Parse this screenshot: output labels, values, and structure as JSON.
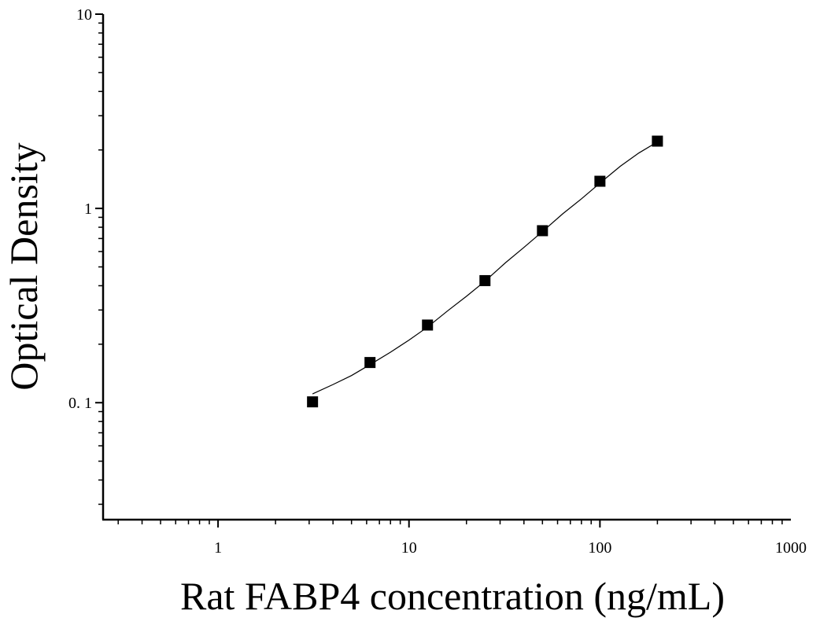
{
  "chart_data": {
    "type": "scatter",
    "title": "",
    "xlabel": "Rat FABP4 concentration (ng/mL)",
    "ylabel": "Optical Density",
    "x_scale": "log",
    "y_scale": "log",
    "xlim": [
      0.25,
      1000
    ],
    "ylim": [
      0.025,
      10
    ],
    "x_ticks": [
      {
        "value": 1,
        "label": "1"
      },
      {
        "value": 10,
        "label": "10"
      },
      {
        "value": 100,
        "label": "100"
      },
      {
        "value": 1000,
        "label": "1000"
      }
    ],
    "y_ticks": [
      {
        "value": 0.1,
        "label": "0. 1"
      },
      {
        "value": 1,
        "label": "1"
      },
      {
        "value": 10,
        "label": "10"
      }
    ],
    "grid": false,
    "legend": "none",
    "marker": "square",
    "colors": {
      "points": "#000000",
      "curve": "#000000",
      "axes": "#000000"
    },
    "series": [
      {
        "x": [
          3.125,
          6.25,
          12.5,
          25,
          50,
          100,
          200
        ],
        "y": [
          0.101,
          0.161,
          0.251,
          0.425,
          0.768,
          1.38,
          2.22
        ]
      }
    ],
    "fit_curve": {
      "x": [
        3.125,
        4,
        5,
        6.25,
        8,
        10,
        12.5,
        16,
        20,
        25,
        32,
        40,
        50,
        64,
        80,
        100,
        128,
        160,
        200
      ],
      "y": [
        0.111,
        0.124,
        0.138,
        0.157,
        0.182,
        0.21,
        0.245,
        0.298,
        0.353,
        0.422,
        0.525,
        0.63,
        0.76,
        0.94,
        1.12,
        1.35,
        1.65,
        1.93,
        2.2
      ]
    }
  }
}
